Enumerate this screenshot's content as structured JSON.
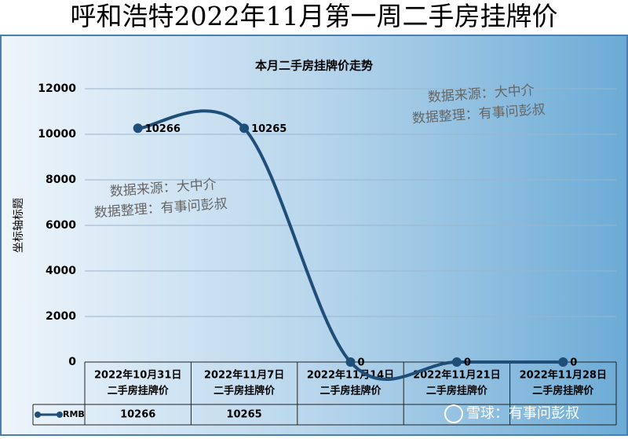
{
  "header": {
    "title": "呼和浩特2022年11月第一周二手房挂牌价"
  },
  "chart_data": {
    "type": "line",
    "title": "本月二手房挂牌价走势",
    "y_label": "坐标轴标题",
    "categories": [
      [
        "2022年10月31日",
        "二手房挂牌价"
      ],
      [
        "2022年11月7日",
        "二手房挂牌价"
      ],
      [
        "2022年11月14日",
        "二手房挂牌价"
      ],
      [
        "2022年11月21日",
        "二手房挂牌价"
      ],
      [
        "2022年11月28日",
        "二手房挂牌价"
      ]
    ],
    "series": [
      {
        "name": "RMB",
        "color": "#1f4e79",
        "values": [
          10266,
          10265,
          0,
          0,
          0
        ]
      }
    ],
    "data_table": [
      10266,
      10265,
      null,
      null,
      null
    ],
    "ylim": [
      0,
      12000
    ],
    "yticks": [
      0,
      2000,
      4000,
      6000,
      8000,
      10000,
      12000
    ],
    "grid": true,
    "smooth": true
  },
  "watermarks": {
    "source": "数据来源：大中介",
    "editor": "数据整理：有事问彭叔",
    "site": "雪球：有事问彭叔"
  }
}
